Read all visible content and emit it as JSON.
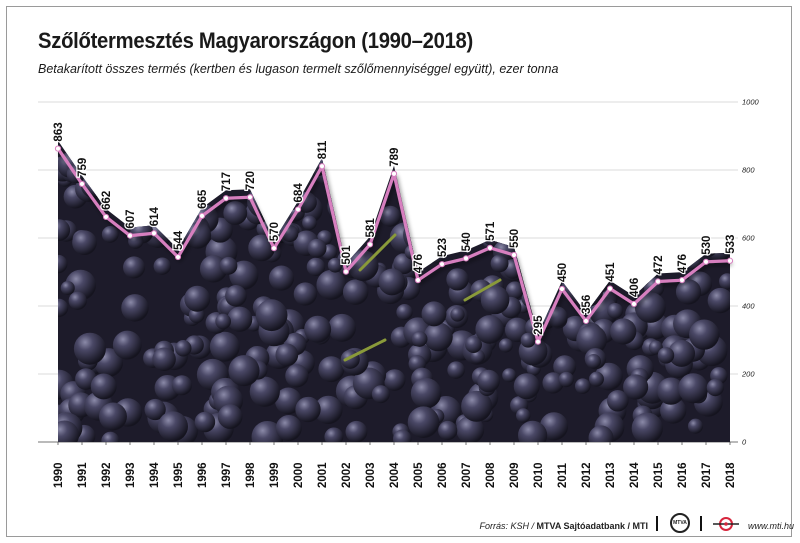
{
  "header": {
    "title": "Szőlőtermesztés Magyarországon (1990–2018)",
    "subtitle": "Betakarított összes termés (kertben és lugason termelt szőlőmennyiséggel együtt), ezer tonna"
  },
  "chart_data": {
    "type": "line",
    "title": "Szőlőtermesztés Magyarországon (1990–2018)",
    "subtitle": "Betakarított összes termés (kertben és lugason termelt szőlőmennyiséggel együtt), ezer tonna",
    "categories": [
      "1990",
      "1991",
      "1992",
      "1993",
      "1994",
      "1995",
      "1996",
      "1997",
      "1998",
      "1999",
      "2000",
      "2001",
      "2002",
      "2003",
      "2004",
      "2005",
      "2006",
      "2007",
      "2008",
      "2009",
      "2010",
      "2011",
      "2012",
      "2013",
      "2014",
      "2015",
      "2016",
      "2017",
      "2018"
    ],
    "values": [
      863,
      759,
      662,
      607,
      614,
      544,
      665,
      717,
      720,
      570,
      684,
      811,
      501,
      581,
      789,
      476,
      523,
      540,
      571,
      550,
      295,
      450,
      356,
      451,
      406,
      472,
      476,
      530,
      533
    ],
    "y_ticks": [
      0,
      200,
      400,
      600,
      800,
      1000
    ],
    "ylim": [
      0,
      1000
    ],
    "yaxis_position": "right",
    "grid": true,
    "line_color": "#d77fbf",
    "marker_color": "#ffffff",
    "background": "photo of dark purple grape clusters",
    "xlabel": "",
    "ylabel": ""
  },
  "footer": {
    "source_prefix": "Forrás: KSH / ",
    "source_bank": "MTVA Sajtóadatbank / MTI",
    "mtva_logo_text": "MTVA",
    "url": "www.mti.hu"
  }
}
